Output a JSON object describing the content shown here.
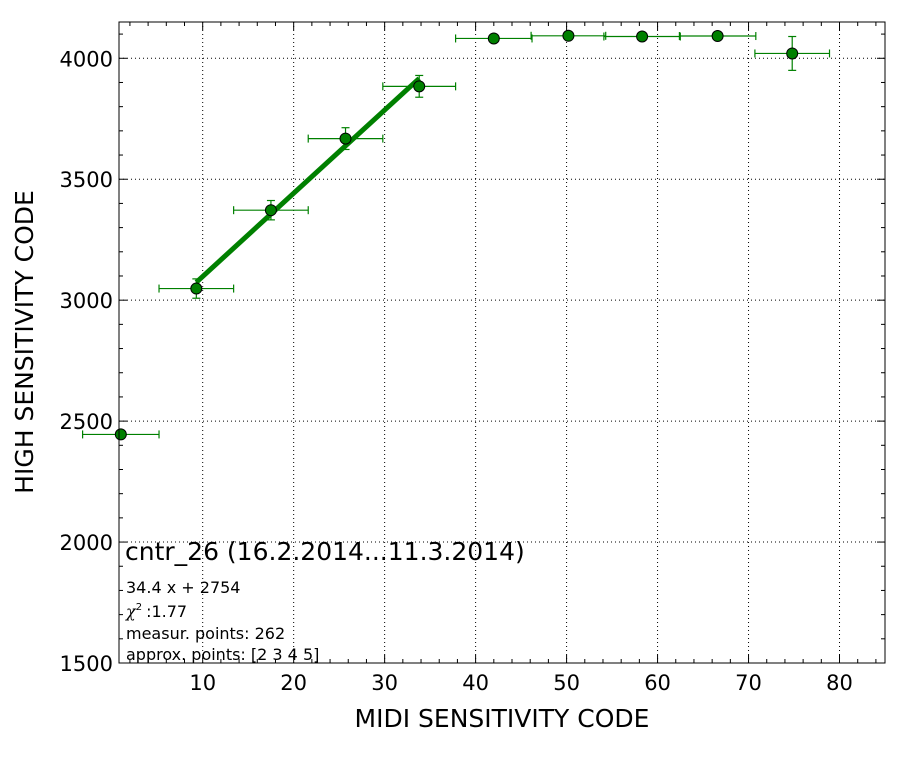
{
  "chart_data": {
    "type": "scatter",
    "title": "",
    "xlabel": "MIDI SENSITIVITY CODE",
    "ylabel": "HIGH SENSITIVITY CODE",
    "xlim": [
      0.8,
      85
    ],
    "ylim": [
      1500,
      4150
    ],
    "grid": true,
    "xticks": [
      10,
      20,
      30,
      40,
      50,
      60,
      70,
      80
    ],
    "yticks": [
      1500,
      2000,
      2500,
      3000,
      3500,
      4000
    ],
    "color": "#008000",
    "points": [
      {
        "x": 1.0,
        "y": 2445,
        "xerr": 4.2,
        "yerr": 0
      },
      {
        "x": 9.3,
        "y": 3048,
        "xerr": 4.1,
        "yerr": 40
      },
      {
        "x": 17.5,
        "y": 3372,
        "xerr": 4.1,
        "yerr": 40
      },
      {
        "x": 25.7,
        "y": 3668,
        "xerr": 4.1,
        "yerr": 45
      },
      {
        "x": 33.8,
        "y": 3884,
        "xerr": 4.0,
        "yerr": 45
      },
      {
        "x": 42.0,
        "y": 4082,
        "xerr": 4.2,
        "yerr": 0
      },
      {
        "x": 50.2,
        "y": 4093,
        "xerr": 4.1,
        "yerr": 0
      },
      {
        "x": 58.3,
        "y": 4090,
        "xerr": 4.2,
        "yerr": 0
      },
      {
        "x": 66.6,
        "y": 4092,
        "xerr": 4.2,
        "yerr": 0
      },
      {
        "x": 74.8,
        "y": 4020,
        "xerr": 4.1,
        "yerr": 70
      }
    ],
    "fit": {
      "slope": 34.4,
      "intercept": 2754,
      "x_range": [
        9.3,
        33.8
      ]
    },
    "annotations": {
      "heading": "cntr_26 (16.2.2014...11.3.2014)",
      "equation": "34.4 x + 2754",
      "chi_label": "χ",
      "chi_sup": "2",
      "chi_value": ":1.77",
      "measur_points": "measur. points: 262",
      "approx_points": "approx. points: [2 3 4 5]"
    }
  }
}
